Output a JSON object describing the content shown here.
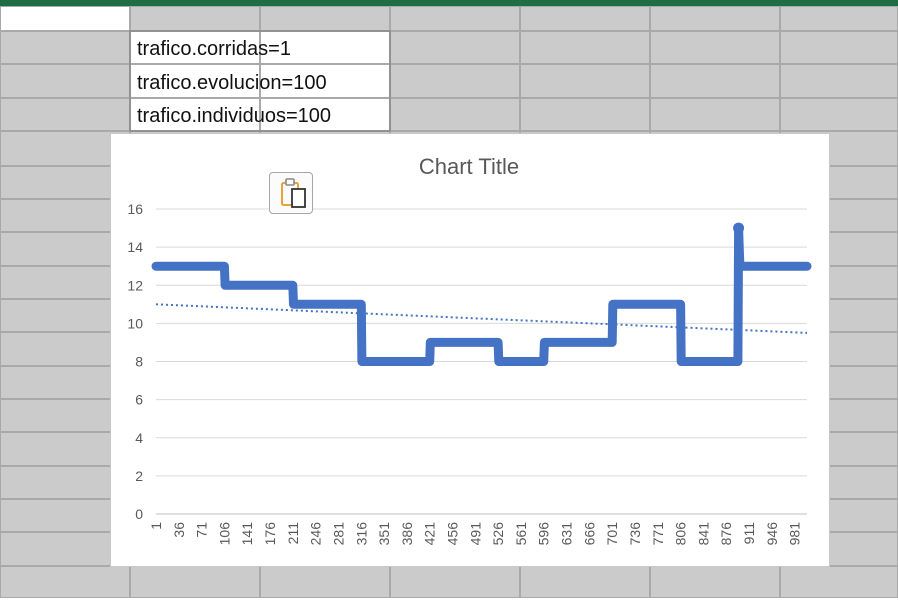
{
  "sheet": {
    "cells": [
      "trafico.corridas=1",
      "trafico.evolucion=100",
      "trafico.individuos=100"
    ],
    "colors": {
      "top_bar": "#1f6e43",
      "header_fill": "#cbcbcb",
      "grid_line": "#a9a9a9"
    }
  },
  "paste_button": {
    "icon": "paste-options-icon",
    "accent": "#e8a23a"
  },
  "chart_data": {
    "type": "line",
    "title": "Chart Title",
    "x_ticks": [
      1,
      36,
      71,
      106,
      141,
      176,
      211,
      246,
      281,
      316,
      351,
      386,
      421,
      456,
      491,
      526,
      561,
      596,
      631,
      666,
      701,
      736,
      771,
      806,
      841,
      876,
      911,
      946,
      981
    ],
    "xlim": [
      1,
      1000
    ],
    "ylim": [
      0,
      16
    ],
    "y_ticks": [
      0,
      2,
      4,
      6,
      8,
      10,
      12,
      14,
      16
    ],
    "grid": "horizontal",
    "series": [
      {
        "color": "#4472c4",
        "style": "step",
        "x": [
          1,
          106,
          107,
          211,
          212,
          316,
          317,
          421,
          422,
          526,
          527,
          596,
          597,
          701,
          702,
          806,
          807,
          894,
          895,
          896,
          897,
          1000
        ],
        "y": [
          13,
          13,
          12,
          12,
          11,
          11,
          8,
          8,
          9,
          9,
          8,
          8,
          9,
          9,
          11,
          11,
          8,
          8,
          15,
          14,
          13,
          13
        ]
      }
    ],
    "trendline": {
      "type": "linear",
      "style": "dotted",
      "color": "#4472c4",
      "start": [
        1,
        11
      ],
      "end": [
        1000,
        9.5
      ]
    }
  }
}
